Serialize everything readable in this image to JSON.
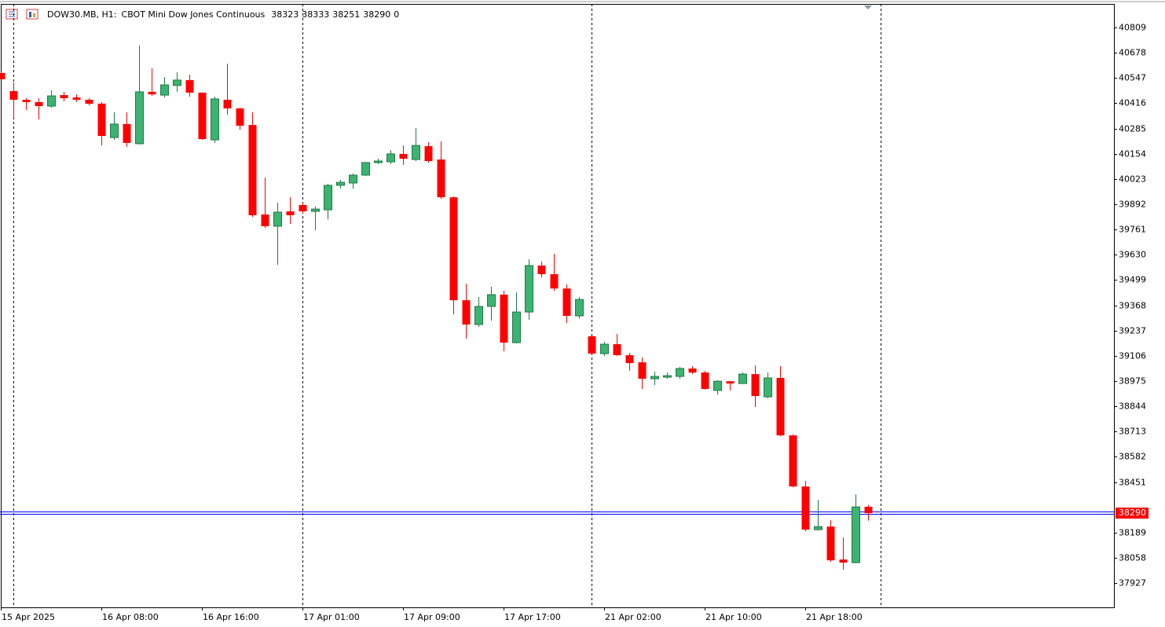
{
  "chart_data": {
    "type": "candlestick",
    "title": "DOW30.MB, H1:",
    "subtitle": "CBOT Mini Dow Jones Continuous",
    "header_values": [
      38323,
      38333,
      38251,
      38290,
      0
    ],
    "categories": [
      "15 Apr 2025",
      null,
      null,
      null,
      null,
      null,
      null,
      null,
      "16 Apr 08:00",
      null,
      null,
      null,
      null,
      null,
      null,
      null,
      "16 Apr 16:00",
      null,
      null,
      null,
      null,
      null,
      null,
      null,
      "17 Apr 01:00",
      null,
      null,
      null,
      null,
      null,
      null,
      null,
      "17 Apr 09:00",
      null,
      null,
      null,
      null,
      null,
      null,
      null,
      "17 Apr 17:00",
      null,
      null,
      null,
      null,
      null,
      null,
      null,
      "21 Apr 02:00",
      null,
      null,
      null,
      null,
      null,
      null,
      null,
      "21 Apr 10:00",
      null,
      null,
      null,
      null,
      null,
      null,
      null,
      "21 Apr 18:00",
      null,
      null,
      null,
      null,
      null
    ],
    "open": [
      40573,
      40479,
      40434,
      40422,
      40401,
      40458,
      40446,
      40434,
      40414,
      40238,
      40308,
      40206,
      40475,
      40458,
      40508,
      40536,
      40471,
      40226,
      40434,
      40389,
      40303,
      39839,
      39778,
      39855,
      39888,
      39855,
      39863,
      39990,
      40002,
      40043,
      40108,
      40112,
      40153,
      40124,
      40193,
      40124,
      39928,
      39394,
      39268,
      39362,
      39423,
      39174,
      39333,
      39574,
      39529,
      39455,
      39313,
      39207,
      39117,
      39166,
      39109,
      39072,
      38987,
      38995,
      38999,
      39040,
      39019,
      38926,
      38974,
      38962,
      39011,
      38893,
      38991,
      38693,
      38428,
      38204,
      38220,
      38049,
      38033,
      38323
    ],
    "high": [
      40580,
      40524,
      40442,
      40442,
      40483,
      40475,
      40462,
      40442,
      40422,
      40369,
      40369,
      40715,
      40597,
      40552,
      40577,
      40564,
      40471,
      40450,
      40621,
      40393,
      40369,
      40030,
      39900,
      39929,
      39900,
      39880,
      39998,
      40018,
      40051,
      40112,
      40128,
      40173,
      40197,
      40287,
      40214,
      40218,
      39932,
      39480,
      39411,
      39464,
      39443,
      39435,
      39606,
      39594,
      39635,
      39476,
      39411,
      39207,
      39178,
      39219,
      39121,
      39097,
      39023,
      39019,
      39048,
      39052,
      39027,
      38979,
      38974,
      39019,
      39056,
      39019,
      39052,
      38697,
      38457,
      38359,
      38253,
      38163,
      38387,
      38333
    ],
    "low": [
      40540,
      40340,
      40381,
      40332,
      40393,
      40426,
      40422,
      40405,
      40197,
      40226,
      40189,
      40202,
      40454,
      40446,
      40475,
      40450,
      40226,
      40210,
      40356,
      40279,
      39826,
      39769,
      39578,
      39790,
      39843,
      39757,
      39814,
      39973,
      39973,
      40039,
      40100,
      40100,
      40096,
      40116,
      40108,
      39920,
      39321,
      39195,
      39256,
      39288,
      39129,
      39170,
      39292,
      39512,
      39443,
      39276,
      39300,
      39117,
      39105,
      39105,
      39027,
      38934,
      38954,
      38987,
      38987,
      39011,
      38930,
      38905,
      38926,
      38962,
      38840,
      38885,
      38689,
      38424,
      38196,
      38200,
      38037,
      37996,
      38029,
      38251
    ],
    "close": [
      40540,
      40434,
      40422,
      40401,
      40454,
      40442,
      40434,
      40413,
      40246,
      40308,
      40210,
      40475,
      40462,
      40511,
      40536,
      40471,
      40230,
      40438,
      40389,
      40299,
      39835,
      39778,
      39851,
      39835,
      39855,
      39867,
      39990,
      40006,
      40043,
      40108,
      40116,
      40153,
      40128,
      40197,
      40116,
      39928,
      39394,
      39268,
      39362,
      39423,
      39174,
      39333,
      39574,
      39529,
      39455,
      39313,
      39398,
      39117,
      39166,
      39109,
      39068,
      38987,
      38999,
      39003,
      39040,
      39019,
      38934,
      38974,
      38962,
      39011,
      38897,
      38991,
      38693,
      38428,
      38204,
      38220,
      38045,
      38033,
      38322,
      38290
    ],
    "up_color": "#3cb371",
    "down_color": "#ff0000",
    "ylim": [
      37801,
      40931
    ],
    "yticks": [
      37927,
      38058,
      38189,
      38451,
      38582,
      38713,
      38844,
      38975,
      39106,
      39237,
      39368,
      39499,
      39630,
      39761,
      39892,
      40023,
      40154,
      40285,
      40416,
      40547,
      40678,
      40809
    ],
    "price_line": 38290,
    "price_line_color": "#0000ff",
    "price_label_color": "#ff0000"
  }
}
